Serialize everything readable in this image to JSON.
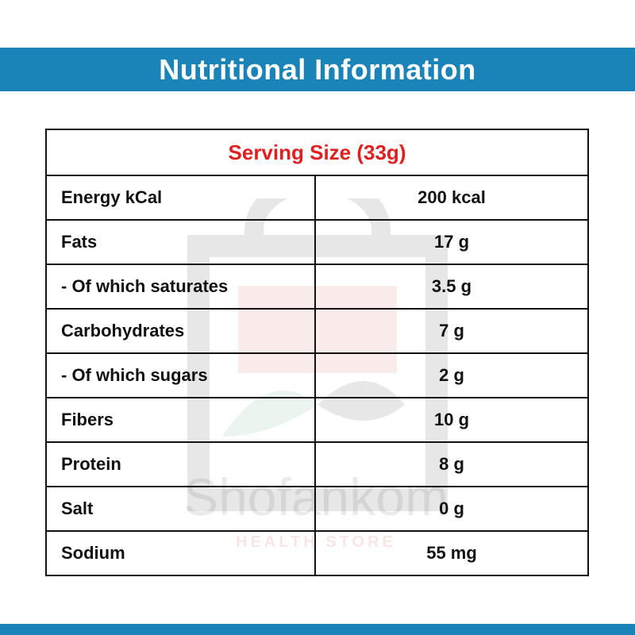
{
  "header": {
    "title": "Nutritional Information"
  },
  "table": {
    "serving_size": "Serving Size (33g)",
    "rows": [
      {
        "label": "Energy kCal",
        "value": "200 kcal"
      },
      {
        "label": "Fats",
        "value": "17 g"
      },
      {
        "label": "- Of which saturates",
        "value": "3.5 g"
      },
      {
        "label": "Carbohydrates",
        "value": "7 g"
      },
      {
        "label": "- Of which sugars",
        "value": "2 g"
      },
      {
        "label": "Fibers",
        "value": "10 g"
      },
      {
        "label": "Protein",
        "value": "8 g"
      },
      {
        "label": "Salt",
        "value": "0 g"
      },
      {
        "label": "Sodium",
        "value": "55 mg"
      }
    ]
  },
  "watermark": {
    "brand": "Shofankom",
    "tagline": "HEALTH STORE"
  },
  "colors": {
    "band": "#1a84b8",
    "serving_text": "#e02020",
    "border": "#111111"
  }
}
